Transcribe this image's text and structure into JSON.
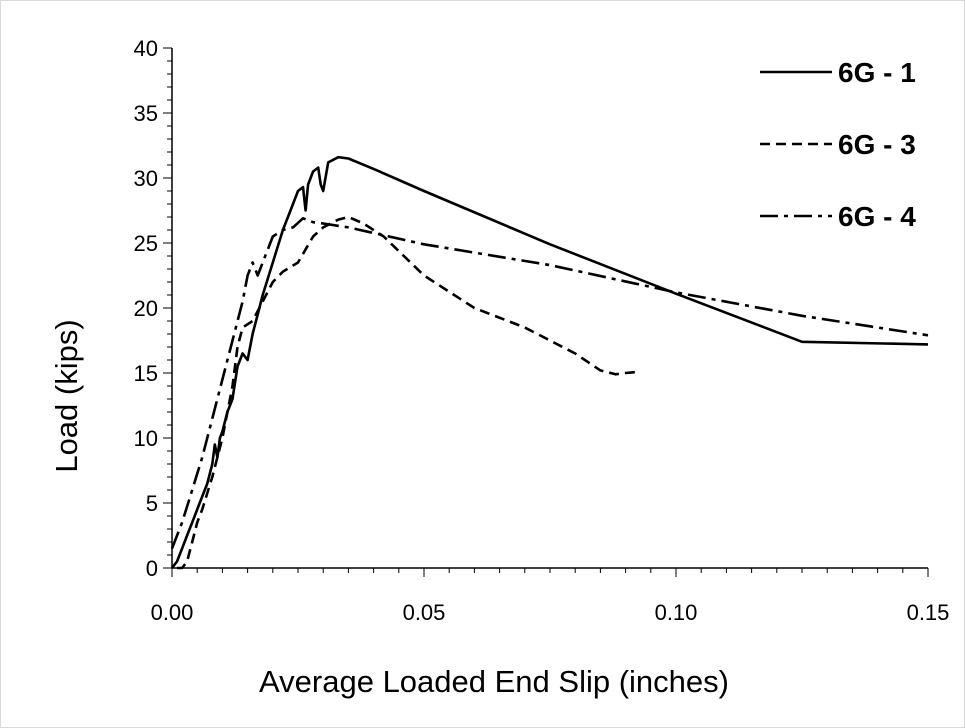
{
  "chart_data": {
    "type": "line",
    "title": "",
    "xlabel": "Average Loaded End Slip (inches)",
    "ylabel": "Load (kips)",
    "xlim": [
      0,
      0.15
    ],
    "ylim": [
      0,
      40
    ],
    "x_ticks": [
      "0.00",
      "0.05",
      "0.10",
      "0.15"
    ],
    "y_ticks": [
      "0",
      "5",
      "10",
      "15",
      "20",
      "25",
      "30",
      "35",
      "40"
    ],
    "x_minor_step": 0.005,
    "y_minor_step": 1,
    "grid": false,
    "legend_position": "top-right",
    "series": [
      {
        "name": "6G - 1",
        "style": "solid",
        "points": [
          [
            0,
            0
          ],
          [
            0.001,
            0.5
          ],
          [
            0.002,
            1.5
          ],
          [
            0.003,
            2.5
          ],
          [
            0.004,
            3.5
          ],
          [
            0.005,
            4.5
          ],
          [
            0.006,
            5.5
          ],
          [
            0.007,
            6.5
          ],
          [
            0.008,
            8
          ],
          [
            0.0085,
            9.5
          ],
          [
            0.009,
            8.5
          ],
          [
            0.0095,
            10
          ],
          [
            0.01,
            10.5
          ],
          [
            0.011,
            12
          ],
          [
            0.012,
            13
          ],
          [
            0.013,
            15.5
          ],
          [
            0.014,
            16.5
          ],
          [
            0.015,
            16
          ],
          [
            0.016,
            18
          ],
          [
            0.017,
            19.5
          ],
          [
            0.018,
            21
          ],
          [
            0.02,
            23.5
          ],
          [
            0.022,
            26
          ],
          [
            0.024,
            28
          ],
          [
            0.025,
            29
          ],
          [
            0.026,
            29.3
          ],
          [
            0.0265,
            27.5
          ],
          [
            0.027,
            29.5
          ],
          [
            0.028,
            30.5
          ],
          [
            0.029,
            30.8
          ],
          [
            0.0295,
            29.5
          ],
          [
            0.03,
            29.0
          ],
          [
            0.031,
            31.2
          ],
          [
            0.033,
            31.6
          ],
          [
            0.035,
            31.5
          ],
          [
            0.04,
            30.7
          ],
          [
            0.05,
            29.0
          ],
          [
            0.075,
            24.9
          ],
          [
            0.1,
            21.1
          ],
          [
            0.125,
            17.4
          ],
          [
            0.15,
            17.2
          ]
        ]
      },
      {
        "name": "6G - 3",
        "style": "dashed",
        "points": [
          [
            0.001,
            0
          ],
          [
            0.002,
            0
          ],
          [
            0.003,
            0.5
          ],
          [
            0.004,
            2
          ],
          [
            0.005,
            3.5
          ],
          [
            0.006,
            4.5
          ],
          [
            0.008,
            7
          ],
          [
            0.01,
            10
          ],
          [
            0.012,
            14
          ],
          [
            0.013,
            17
          ],
          [
            0.014,
            18.5
          ],
          [
            0.016,
            19
          ],
          [
            0.018,
            20.5
          ],
          [
            0.02,
            22
          ],
          [
            0.022,
            22.8
          ],
          [
            0.025,
            23.5
          ],
          [
            0.028,
            25.5
          ],
          [
            0.03,
            26.2
          ],
          [
            0.033,
            26.8
          ],
          [
            0.035,
            27.0
          ],
          [
            0.038,
            26.5
          ],
          [
            0.042,
            25.5
          ],
          [
            0.05,
            22.5
          ],
          [
            0.06,
            20
          ],
          [
            0.07,
            18.5
          ],
          [
            0.08,
            16.5
          ],
          [
            0.085,
            15.2
          ],
          [
            0.088,
            14.9
          ],
          [
            0.09,
            15.0
          ],
          [
            0.093,
            15.1
          ]
        ]
      },
      {
        "name": "6G - 4",
        "style": "dashdot",
        "points": [
          [
            0.0,
            1.5
          ],
          [
            0.002,
            3.5
          ],
          [
            0.004,
            6
          ],
          [
            0.006,
            8.5
          ],
          [
            0.008,
            11.5
          ],
          [
            0.01,
            14.5
          ],
          [
            0.012,
            17.5
          ],
          [
            0.014,
            20.5
          ],
          [
            0.015,
            22.5
          ],
          [
            0.016,
            23.5
          ],
          [
            0.017,
            22.5
          ],
          [
            0.018,
            23.5
          ],
          [
            0.02,
            25.5
          ],
          [
            0.022,
            26.0
          ],
          [
            0.024,
            26.2
          ],
          [
            0.026,
            26.9
          ],
          [
            0.028,
            26.6
          ],
          [
            0.03,
            26.5
          ],
          [
            0.035,
            26.2
          ],
          [
            0.05,
            24.9
          ],
          [
            0.075,
            23.3
          ],
          [
            0.1,
            21.2
          ],
          [
            0.125,
            19.4
          ],
          [
            0.15,
            17.9
          ]
        ]
      }
    ]
  }
}
